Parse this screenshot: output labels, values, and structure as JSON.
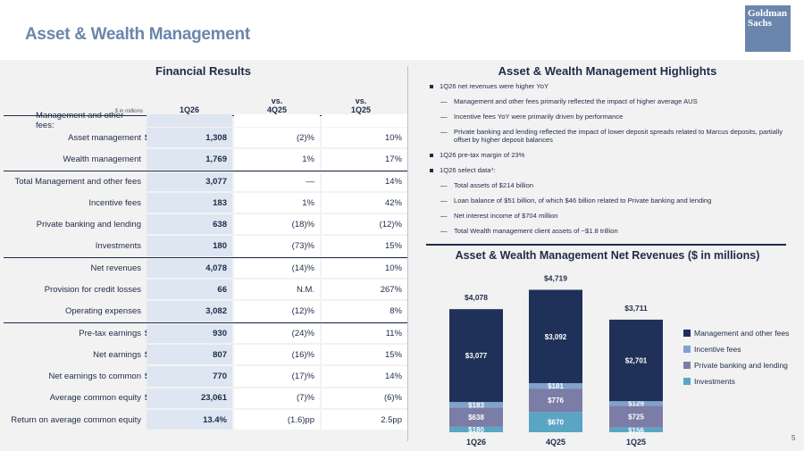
{
  "header": {
    "title": "Asset & Wealth Management",
    "logo_line1": "Goldman",
    "logo_line2": "Sachs"
  },
  "financial_results": {
    "title": "Financial Results",
    "units": "$ in millions",
    "columns": [
      "1Q26",
      "vs. 4Q25",
      "vs. 1Q25"
    ],
    "col_4q25_l1": "vs.",
    "col_4q25_l2": "4Q25",
    "col_1q25_l1": "vs.",
    "col_1q25_l2": "1Q25",
    "section_label": "Management and other fees:",
    "rows": [
      {
        "label": "Asset management",
        "dollar": "$",
        "v": "1,308",
        "c4q": "(2)%",
        "c1q": "10%"
      },
      {
        "label": "Wealth management",
        "dollar": "",
        "v": "1,769",
        "c4q": "1%",
        "c1q": "17%"
      },
      {
        "label": "Total Management and other fees",
        "dollar": "",
        "v": "3,077",
        "c4q": "—",
        "c1q": "14%"
      },
      {
        "label": "Incentive fees",
        "dollar": "",
        "v": "183",
        "c4q": "1%",
        "c1q": "42%"
      },
      {
        "label": "Private banking and lending",
        "dollar": "",
        "v": "638",
        "c4q": "(18)%",
        "c1q": "(12)%"
      },
      {
        "label": "Investments",
        "dollar": "",
        "v": "180",
        "c4q": "(73)%",
        "c1q": "15%"
      },
      {
        "label": "Net revenues",
        "dollar": "",
        "v": "4,078",
        "c4q": "(14)%",
        "c1q": "10%"
      },
      {
        "label": "Provision for credit losses",
        "dollar": "",
        "v": "66",
        "c4q": "N.M.",
        "c1q": "267%"
      },
      {
        "label": "Operating expenses",
        "dollar": "",
        "v": "3,082",
        "c4q": "(12)%",
        "c1q": "8%"
      },
      {
        "label": "Pre-tax earnings",
        "dollar": "$",
        "v": "930",
        "c4q": "(24)%",
        "c1q": "11%"
      },
      {
        "label": "Net earnings",
        "dollar": "$",
        "v": "807",
        "c4q": "(16)%",
        "c1q": "15%"
      },
      {
        "label": "Net earnings to common",
        "dollar": "$",
        "v": "770",
        "c4q": "(17)%",
        "c1q": "14%"
      },
      {
        "label": "Average common equity",
        "dollar": "$",
        "v": "23,061",
        "c4q": "(7)%",
        "c1q": "(6)%"
      },
      {
        "label": "Return on average common equity",
        "dollar": "",
        "v": "13.4%",
        "c4q": "(1.6)pp",
        "c1q": "2.5pp"
      }
    ]
  },
  "highlights": {
    "title": "Asset & Wealth Management Highlights",
    "items": [
      {
        "level": 1,
        "text": "1Q26 net revenues were higher YoY"
      },
      {
        "level": 2,
        "text": "Management and other fees primarily reflected the impact of higher average AUS"
      },
      {
        "level": 2,
        "text": "Incentive fees YoY were primarily driven by performance"
      },
      {
        "level": 2,
        "text": "Private banking and lending reflected the impact of lower deposit spreads related to Marcus deposits, partially offset by higher deposit balances"
      },
      {
        "level": 1,
        "text": "1Q26 pre-tax margin of 23%"
      },
      {
        "level": 1,
        "text": "1Q26 select data⁴:"
      },
      {
        "level": 2,
        "text": "Total assets of $214 billion"
      },
      {
        "level": 2,
        "text": "Loan balance of $51 billion, of which $46 billion related to Private banking and lending"
      },
      {
        "level": 2,
        "text": "Net interest income of $704 million"
      },
      {
        "level": 2,
        "text": "Total Wealth management client assets of ~$1.8 trillion"
      }
    ]
  },
  "chart_data": {
    "type": "bar",
    "stacked": true,
    "title": "Asset & Wealth Management Net Revenues ($ in millions)",
    "categories": [
      "1Q26",
      "4Q25",
      "1Q25"
    ],
    "totals": [
      4078,
      4719,
      3711
    ],
    "total_labels": [
      "$4,078",
      "$4,719",
      "$3,711"
    ],
    "series": [
      {
        "name": "Investments",
        "color": "#5aa5c4",
        "values": [
          180,
          670,
          156
        ],
        "labels": [
          "$180",
          "$670",
          "$156"
        ]
      },
      {
        "name": "Private banking and lending",
        "color": "#7b7da6",
        "values": [
          638,
          776,
          725
        ],
        "labels": [
          "$638",
          "$776",
          "$725"
        ]
      },
      {
        "name": "Incentive fees",
        "color": "#7fa3cc",
        "values": [
          183,
          181,
          129
        ],
        "labels": [
          "$183",
          "$181",
          "$129"
        ]
      },
      {
        "name": "Management and other fees",
        "color": "#1f3159",
        "values": [
          3077,
          3092,
          2701
        ],
        "labels": [
          "$3,077",
          "$3,092",
          "$2,701"
        ]
      }
    ],
    "legend_order": [
      "Management and other fees",
      "Incentive fees",
      "Private banking and lending",
      "Investments"
    ],
    "legend_position": "right"
  },
  "page_number": "5"
}
